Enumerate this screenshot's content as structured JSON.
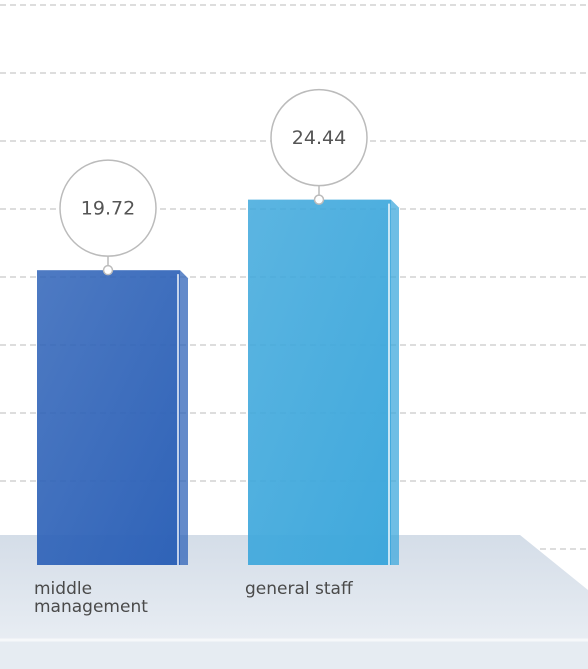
{
  "chart_data": {
    "type": "bar",
    "categories": [
      "middle management",
      "general staff"
    ],
    "values": [
      19.72,
      24.44
    ],
    "colors": [
      "#2f63b8",
      "#3fa8dc"
    ]
  }
}
